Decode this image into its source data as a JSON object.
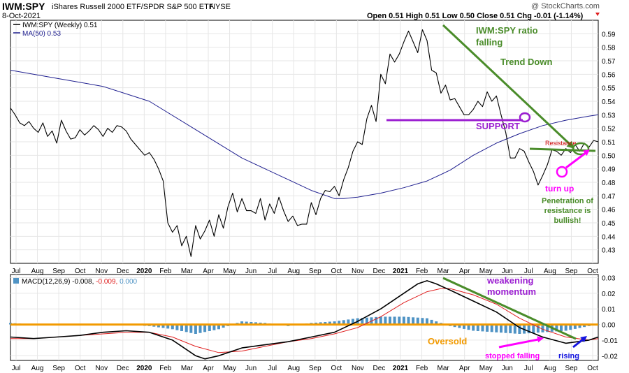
{
  "header": {
    "symbol": "IWM:SPY",
    "description": "iShares Russell 2000 ETF/SPDR S&P 500 ETF",
    "exchange": "NYSE",
    "date": "8-Oct-2021",
    "ohlc_text": "Open 0.51  High 0.51  Low 0.50  Close 0.51  Chg -0.01 (-1.14%)",
    "watermark": "@ StockCharts.com"
  },
  "colors": {
    "price": "#000000",
    "ma": "#1f1f8f",
    "green": "#4a8c2a",
    "purple": "#9b1fd1",
    "magenta": "#ff00ff",
    "orange": "#f29a00",
    "blue_arrow": "#1515e0",
    "hist": "#4f93c4",
    "signal": "#e02020",
    "resistance_text": "#cc0000"
  },
  "chart_data": [
    {
      "type": "line",
      "title": "IWM:SPY",
      "legend": [
        "IWM:SPY (Weekly) 0.51",
        "MA(50) 0.53"
      ],
      "legend_placement": "top-left",
      "x_ticks": [
        "Jul",
        "Aug",
        "Sep",
        "Oct",
        "Nov",
        "Dec",
        "2020",
        "Feb",
        "Mar",
        "Apr",
        "May",
        "Jun",
        "Jul",
        "Aug",
        "Sep",
        "Oct",
        "Nov",
        "Dec",
        "2021",
        "Feb",
        "Mar",
        "Apr",
        "May",
        "Jun",
        "Jul",
        "Aug",
        "Sep",
        "Oct"
      ],
      "ylim": [
        0.42,
        0.6
      ],
      "y_ticks": [
        0.43,
        0.44,
        0.45,
        0.46,
        0.47,
        0.48,
        0.49,
        0.5,
        0.51,
        0.52,
        0.53,
        0.54,
        0.55,
        0.56,
        0.57,
        0.58,
        0.59
      ],
      "grid": true,
      "series": [
        {
          "name": "IWM:SPY (Weekly)",
          "x": [
            0,
            1,
            2,
            3,
            4,
            5,
            6,
            7,
            8,
            9,
            10,
            11,
            12,
            13,
            14,
            15,
            16,
            17,
            18,
            19,
            20,
            21,
            22,
            23,
            24,
            25,
            26,
            27,
            28,
            29,
            30,
            31,
            32,
            33,
            34,
            35,
            36,
            37,
            38,
            39,
            40,
            41,
            42,
            43,
            44,
            45,
            46,
            47,
            48,
            49,
            50,
            51,
            52,
            53,
            54,
            55,
            56,
            57,
            58,
            59,
            60,
            61,
            62,
            63,
            64,
            65,
            66,
            67,
            68,
            69,
            70,
            71,
            72,
            73,
            74,
            75,
            76,
            77,
            78,
            79,
            80,
            81,
            82,
            83,
            84,
            85,
            86,
            87,
            88,
            89,
            90,
            91,
            92,
            93,
            94,
            95,
            96,
            97,
            98,
            99,
            100,
            101,
            102,
            103,
            104,
            105,
            106,
            107,
            108,
            109,
            110,
            111,
            112,
            113,
            114,
            115,
            116,
            117,
            118,
            119,
            120,
            121,
            122,
            123,
            124,
            125,
            126,
            127
          ],
          "values": [
            0.535,
            0.53,
            0.524,
            0.522,
            0.525,
            0.52,
            0.517,
            0.524,
            0.514,
            0.518,
            0.509,
            0.526,
            0.518,
            0.512,
            0.513,
            0.519,
            0.515,
            0.518,
            0.522,
            0.519,
            0.514,
            0.52,
            0.517,
            0.522,
            0.521,
            0.518,
            0.512,
            0.508,
            0.504,
            0.5,
            0.502,
            0.497,
            0.49,
            0.481,
            0.45,
            0.443,
            0.448,
            0.433,
            0.44,
            0.425,
            0.448,
            0.438,
            0.444,
            0.452,
            0.44,
            0.456,
            0.446,
            0.462,
            0.472,
            0.458,
            0.468,
            0.459,
            0.459,
            0.457,
            0.468,
            0.452,
            0.464,
            0.457,
            0.469,
            0.459,
            0.451,
            0.455,
            0.448,
            0.449,
            0.449,
            0.465,
            0.456,
            0.468,
            0.474,
            0.473,
            0.477,
            0.47,
            0.482,
            0.491,
            0.503,
            0.51,
            0.508,
            0.527,
            0.537,
            0.525,
            0.56,
            0.553,
            0.575,
            0.569,
            0.575,
            0.584,
            0.592,
            0.584,
            0.576,
            0.593,
            0.585,
            0.563,
            0.561,
            0.546,
            0.552,
            0.541,
            0.542,
            0.536,
            0.53,
            0.53,
            0.534,
            0.54,
            0.536,
            0.547,
            0.54,
            0.544,
            0.53,
            0.517,
            0.498,
            0.498,
            0.505,
            0.503,
            0.495,
            0.488,
            0.478,
            0.485,
            0.493,
            0.504,
            0.503,
            0.5,
            0.505,
            0.502,
            0.508,
            0.503,
            0.509,
            0.506,
            0.511,
            0.51
          ]
        },
        {
          "name": "MA(50)",
          "x": [
            0,
            10,
            20,
            30,
            40,
            50,
            60,
            65,
            70,
            72,
            75,
            80,
            85,
            90,
            95,
            100,
            105,
            110,
            115,
            120,
            125,
            127
          ],
          "values": [
            0.563,
            0.557,
            0.551,
            0.54,
            0.519,
            0.498,
            0.482,
            0.474,
            0.468,
            0.468,
            0.469,
            0.472,
            0.476,
            0.481,
            0.489,
            0.5,
            0.509,
            0.516,
            0.522,
            0.526,
            0.529,
            0.53
          ]
        }
      ],
      "annotations": [
        "IWM:SPY ratio falling",
        "Trend Down",
        "SUPPORT",
        "Resistance",
        "turn up",
        "Penetration of resistance is bullish!"
      ]
    },
    {
      "type": "line",
      "title": "MACD(12,26,9)",
      "legend": [
        "MACD(12,26,9) -0.008,",
        "-0.009,",
        "0.000"
      ],
      "legend_placement": "top-left",
      "ylim": [
        -0.023,
        0.032
      ],
      "y_ticks": [
        0.03,
        0.02,
        0.01,
        0.0,
        -0.01,
        -0.02
      ],
      "y_tick_labels": [
        "0.03",
        "0.02",
        "0.01",
        "0.00",
        "-0.01",
        "-0.02"
      ],
      "grid": true,
      "series": [
        {
          "name": "MACD",
          "x": [
            0,
            5,
            10,
            15,
            20,
            25,
            30,
            35,
            40,
            42,
            45,
            50,
            55,
            60,
            65,
            70,
            75,
            80,
            85,
            88,
            90,
            92,
            95,
            100,
            105,
            110,
            115,
            120,
            125,
            127
          ],
          "values": [
            -0.008,
            -0.009,
            -0.008,
            -0.007,
            -0.005,
            -0.004,
            -0.005,
            -0.01,
            -0.02,
            -0.022,
            -0.02,
            -0.015,
            -0.013,
            -0.011,
            -0.008,
            -0.005,
            0.002,
            0.01,
            0.02,
            0.026,
            0.028,
            0.026,
            0.022,
            0.015,
            0.008,
            -0.002,
            -0.008,
            -0.012,
            -0.01,
            -0.008
          ]
        },
        {
          "name": "Signal",
          "x": [
            0,
            5,
            10,
            15,
            20,
            25,
            30,
            35,
            40,
            45,
            50,
            55,
            60,
            65,
            70,
            75,
            80,
            85,
            90,
            93,
            95,
            100,
            105,
            110,
            115,
            120,
            125,
            127
          ],
          "values": [
            -0.009,
            -0.009,
            -0.008,
            -0.007,
            -0.006,
            -0.005,
            -0.005,
            -0.008,
            -0.014,
            -0.018,
            -0.017,
            -0.014,
            -0.011,
            -0.009,
            -0.006,
            -0.002,
            0.005,
            0.014,
            0.021,
            0.023,
            0.023,
            0.019,
            0.013,
            0.004,
            -0.003,
            -0.008,
            -0.01,
            -0.009
          ]
        },
        {
          "name": "Histogram",
          "x": [
            0,
            5,
            10,
            15,
            20,
            25,
            30,
            35,
            40,
            45,
            50,
            55,
            60,
            65,
            70,
            75,
            80,
            85,
            90,
            95,
            100,
            105,
            110,
            115,
            120,
            125,
            127
          ],
          "values": [
            0.001,
            0.0,
            0.0,
            0.0,
            0.0,
            0.0,
            -0.001,
            -0.003,
            -0.006,
            -0.003,
            0.002,
            0.001,
            -0.001,
            0.001,
            0.002,
            0.004,
            0.005,
            0.005,
            0.004,
            -0.001,
            -0.004,
            -0.005,
            -0.006,
            -0.005,
            -0.004,
            -0.001,
            0.0
          ]
        }
      ],
      "annotations": [
        "weakening momentum",
        "Oversold",
        "stopped falling",
        "rising"
      ]
    }
  ]
}
